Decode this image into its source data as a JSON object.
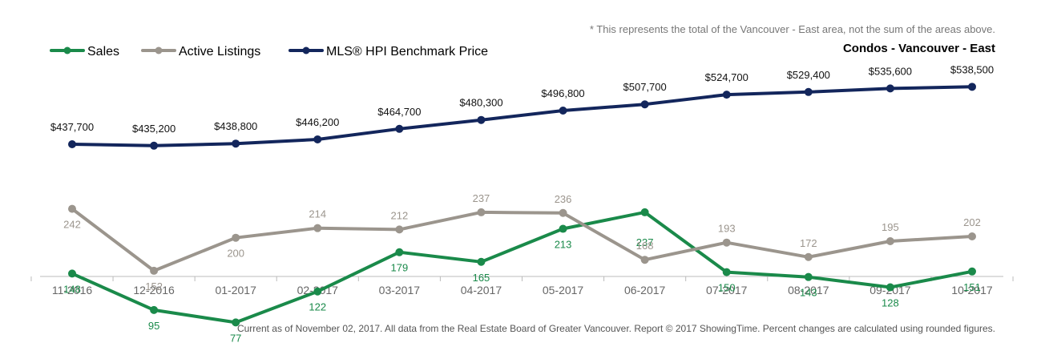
{
  "note": "* This represents the total of the Vancouver - East area, not the sum of the areas above.",
  "footer": "Current as of November 02, 2017. All data from the Real Estate Board of Greater Vancouver. Report © 2017 ShowingTime. Percent changes are calculated using rounded figures.",
  "colors": {
    "sales": "#1a8a4a",
    "active": "#9b958d",
    "hpi": "#13265c",
    "axis": "#bbbbbb",
    "tick_text": "#666666"
  },
  "chart_data": {
    "type": "line",
    "title": "Condos - Vancouver - East",
    "categories": [
      "11-2016",
      "12-2016",
      "01-2017",
      "02-2017",
      "03-2017",
      "04-2017",
      "05-2017",
      "06-2017",
      "07-2017",
      "08-2017",
      "09-2017",
      "10-2017"
    ],
    "legend_position": "top-left",
    "grid": false,
    "series": [
      {
        "name": "Sales",
        "color": "#1a8a4a",
        "values": [
          148,
          95,
          77,
          122,
          179,
          165,
          213,
          237,
          150,
          143,
          128,
          151
        ],
        "labels": [
          "148",
          "95",
          "77",
          "122",
          "179",
          "165",
          "213",
          "237",
          "150",
          "143",
          "128",
          "151"
        ]
      },
      {
        "name": "Active Listings",
        "color": "#9b958d",
        "values": [
          242,
          152,
          200,
          214,
          212,
          237,
          236,
          168,
          193,
          172,
          195,
          202
        ],
        "labels": [
          "242",
          "152",
          "200",
          "214",
          "212",
          "237",
          "236",
          "168",
          "193",
          "172",
          "195",
          "202"
        ]
      },
      {
        "name": "MLS® HPI Benchmark Price",
        "color": "#13265c",
        "values": [
          437700,
          435200,
          438800,
          446200,
          464700,
          480300,
          496800,
          507700,
          524700,
          529400,
          535600,
          538500
        ],
        "labels": [
          "$437,700",
          "$435,200",
          "$438,800",
          "$446,200",
          "$464,700",
          "$480,300",
          "$496,800",
          "$507,700",
          "$524,700",
          "$529,400",
          "$535,600",
          "$538,500"
        ]
      }
    ]
  }
}
